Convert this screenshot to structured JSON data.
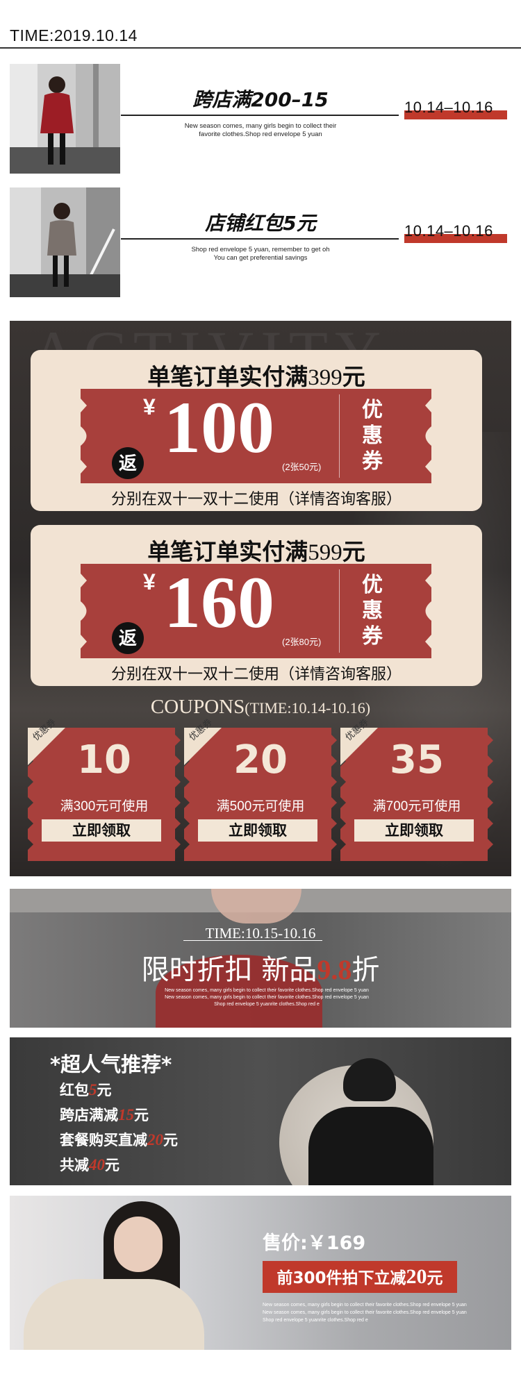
{
  "header": {
    "time": "TIME:2019.10.14"
  },
  "promos": [
    {
      "title": "跨店满200–15",
      "subtitle_line1": "New season comes, many girls begin to collect their",
      "subtitle_line2": "favorite clothes.Shop red envelope 5 yuan",
      "date": "10.14–10.16"
    },
    {
      "title": "店铺红包5元",
      "subtitle_line1": "Shop red envelope 5 yuan, remember to get oh",
      "subtitle_line2": "You can get preferential savings",
      "date": "10.14–10.16"
    }
  ],
  "activity": {
    "bg_word": "ACTIVITY",
    "big_coupons": [
      {
        "title_prefix": "单笔订单实付满",
        "title_amount": "399",
        "title_suffix": "元",
        "yen": "¥",
        "amount": "100",
        "note": "(2张50元)",
        "fan": "返",
        "side": [
          "优",
          "惠",
          "券"
        ],
        "desc": "分别在双十一双十二使用（详情咨询客服）"
      },
      {
        "title_prefix": "单笔订单实付满",
        "title_amount": "599",
        "title_suffix": "元",
        "yen": "¥",
        "amount": "160",
        "note": "(2张80元)",
        "fan": "返",
        "side": [
          "优",
          "惠",
          "券"
        ],
        "desc": "分别在双十一双十二使用（详情咨询客服）"
      }
    ],
    "coupons_title_big": "COUPONS",
    "coupons_title_small": "(TIME:10.14-10.16)",
    "mini_coupons": [
      {
        "tag": "优惠券",
        "value": "10",
        "condition": "满300元可使用",
        "button": "立即领取"
      },
      {
        "tag": "优惠券",
        "value": "20",
        "condition": "满500元可使用",
        "button": "立即领取"
      },
      {
        "tag": "优惠券",
        "value": "35",
        "condition": "满700元可使用",
        "button": "立即领取"
      }
    ]
  },
  "flash": {
    "time": "TIME:10.15-10.16",
    "title_part1": "限时折扣 新品",
    "title_accent": "9.8",
    "title_part2": "折",
    "sub_line1": "New season comes, many girls begin to collect their favorite clothes.Shop red envelope 5 yuan",
    "sub_line2": "New season comes, many girls begin to collect their favorite clothes.Shop red envelope 5 yuan",
    "sub_line3": "Shop red envelope 5 yuanrite clothes.Shop red e"
  },
  "popular": {
    "title": "*超人气推荐*",
    "items": [
      {
        "label": "红包",
        "num": "5",
        "unit": "元"
      },
      {
        "label": "跨店满减",
        "num": "15",
        "unit": "元"
      },
      {
        "label": "套餐购买直减",
        "num": "20",
        "unit": "元"
      },
      {
        "label": "共减",
        "num": "40",
        "unit": "元"
      }
    ]
  },
  "product": {
    "price": "售价:￥169",
    "btn_prefix": "前300件拍下立减",
    "btn_amount": "20",
    "btn_suffix": "元",
    "sub_line1": "New season comes, many girls begin to collect their favorite clothes.Shop red envelope 5 yuan",
    "sub_line2": "New season comes, many girls begin to collect their favorite clothes.Shop red envelope 5 yuan",
    "sub_line3": "Shop red envelope 5 yuanrite clothes.Shop red e"
  },
  "colors": {
    "accent_red": "#c0392b",
    "coupon_red": "#a8403c",
    "cream": "#f2e3d3"
  }
}
